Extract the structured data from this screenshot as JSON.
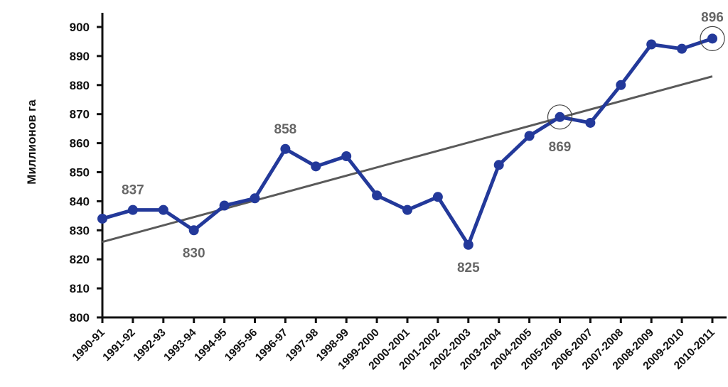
{
  "chart_data": {
    "type": "line",
    "ylabel": "Миллионов га",
    "xlabel": "",
    "ylim": [
      800,
      900
    ],
    "yticks": [
      800,
      810,
      820,
      830,
      840,
      850,
      860,
      870,
      880,
      890,
      900
    ],
    "grid": false,
    "categories": [
      "1990-91",
      "1991-92",
      "1992-93",
      "1993-94",
      "1994-95",
      "1995-96",
      "1996-97",
      "1997-98",
      "1998-99",
      "1999-2000",
      "2000-2001",
      "2001-2002",
      "2002-2003",
      "2003-2004",
      "2004-2005",
      "2005-2006",
      "2006-2007",
      "2007-2008",
      "2008-2009",
      "2009-2010",
      "2010-2011"
    ],
    "series": [
      {
        "values": [
          834,
          837,
          837,
          830,
          838.5,
          841,
          858,
          852,
          855.5,
          842,
          837,
          841.5,
          825,
          852.5,
          862.5,
          869,
          867,
          880,
          894,
          892.5,
          896
        ],
        "color": "#23399a"
      }
    ],
    "trendline": {
      "start": 826,
      "end": 883,
      "color": "#5a5a5a"
    },
    "annotations": [
      {
        "index": 1,
        "label": "837",
        "position": "above",
        "circled": false
      },
      {
        "index": 3,
        "label": "830",
        "position": "below",
        "circled": false
      },
      {
        "index": 6,
        "label": "858",
        "position": "above",
        "circled": false
      },
      {
        "index": 12,
        "label": "825",
        "position": "below",
        "circled": false
      },
      {
        "index": 15,
        "label": "869",
        "position": "below",
        "circled": true
      },
      {
        "index": 20,
        "label": "896",
        "position": "above",
        "circled": true
      }
    ]
  }
}
